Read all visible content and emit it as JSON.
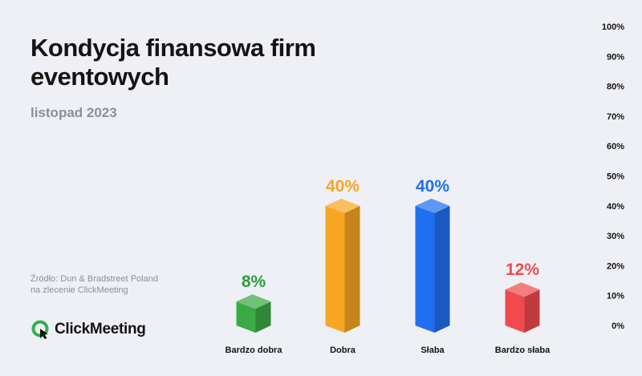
{
  "header": {
    "title": "Kondycja finansowa firm eventowych",
    "subtitle": "listopad 2023"
  },
  "footer": {
    "source_line1": "Źródło: Dun & Bradstreet Poland",
    "source_line2": "na zlecenie ClickMeeting",
    "logo_text": "ClickMeeting",
    "logo_icon": "clickmeeting-logo-icon"
  },
  "chart_data": {
    "type": "bar",
    "title": "Kondycja finansowa firm eventowych",
    "subtitle": "listopad 2023",
    "xlabel": "",
    "ylabel": "",
    "categories": [
      "Bardzo dobra",
      "Dobra",
      "Słaba",
      "Bardzo słaba"
    ],
    "values": [
      8,
      40,
      40,
      12
    ],
    "data_labels": [
      "8%",
      "40%",
      "40%",
      "12%"
    ],
    "colors": [
      "#3aaa45",
      "#f6a623",
      "#1f6ff0",
      "#f04a4e"
    ],
    "label_colors": [
      "#2f9e3a",
      "#f6a623",
      "#1f6ff0",
      "#f04a4e"
    ],
    "ylim": [
      0,
      100
    ],
    "yticks": [
      0,
      10,
      20,
      30,
      40,
      50,
      60,
      70,
      80,
      90,
      100
    ],
    "ytick_labels": [
      "0%",
      "10%",
      "20%",
      "30%",
      "40%",
      "50%",
      "60%",
      "70%",
      "80%",
      "90%",
      "100%"
    ],
    "y_axis_position": "right",
    "grid": false,
    "legend": "none",
    "style": "3d-columns"
  }
}
